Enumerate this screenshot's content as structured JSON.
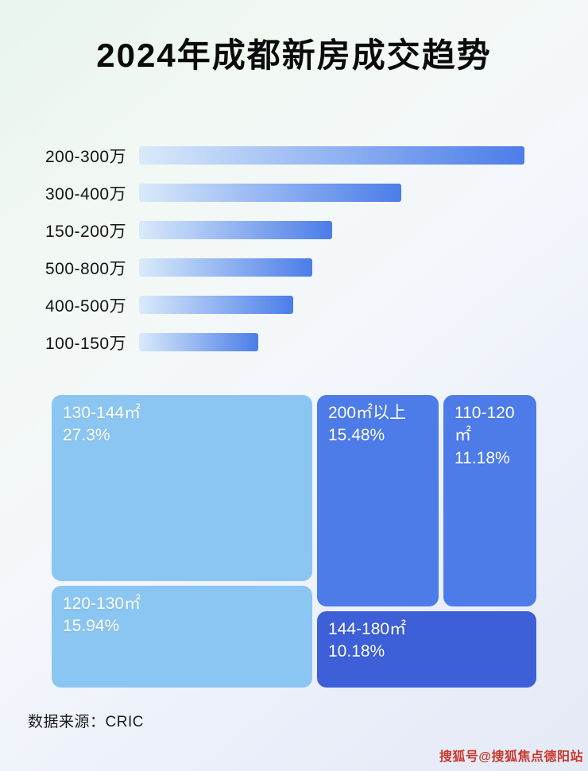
{
  "header": {
    "title": "2024年成都新房成交趋势"
  },
  "footer": {
    "source": "数据来源：CRIC"
  },
  "watermark": {
    "text": "搜狐号@搜狐焦点德阳站",
    "color": "#c8382b"
  },
  "chart_data": [
    {
      "type": "bar",
      "orientation": "horizontal",
      "title": "",
      "xlabel": "",
      "ylabel": "",
      "categories": [
        "200-300万",
        "300-400万",
        "150-200万",
        "500-800万",
        "400-500万",
        "100-150万"
      ],
      "values": [
        100,
        68,
        50,
        45,
        40,
        31
      ],
      "values_note": "no axis or data labels shown; values estimated as percent of longest bar",
      "grid": false,
      "legend_position": "none",
      "bar_gradient": [
        "#d9eafa",
        "#4b7de9"
      ]
    },
    {
      "type": "treemap",
      "title": "",
      "items": [
        {
          "label": "130-144㎡",
          "value": 27.3,
          "value_label": "27.3%",
          "color": "#8bc6f2"
        },
        {
          "label": "200㎡以上",
          "value": 15.48,
          "value_label": "15.48%",
          "color": "#4d7ce9"
        },
        {
          "label": "110-120㎡",
          "value": 11.18,
          "value_label": "11.18%",
          "color": "#4d7ce9"
        },
        {
          "label": "120-130㎡",
          "value": 15.94,
          "value_label": "15.94%",
          "color": "#8bc6f2"
        },
        {
          "label": "144-180㎡",
          "value": 10.18,
          "value_label": "10.18%",
          "color": "#3d5fd8"
        }
      ],
      "text_color": "#ffffff",
      "legend_position": "none"
    }
  ]
}
